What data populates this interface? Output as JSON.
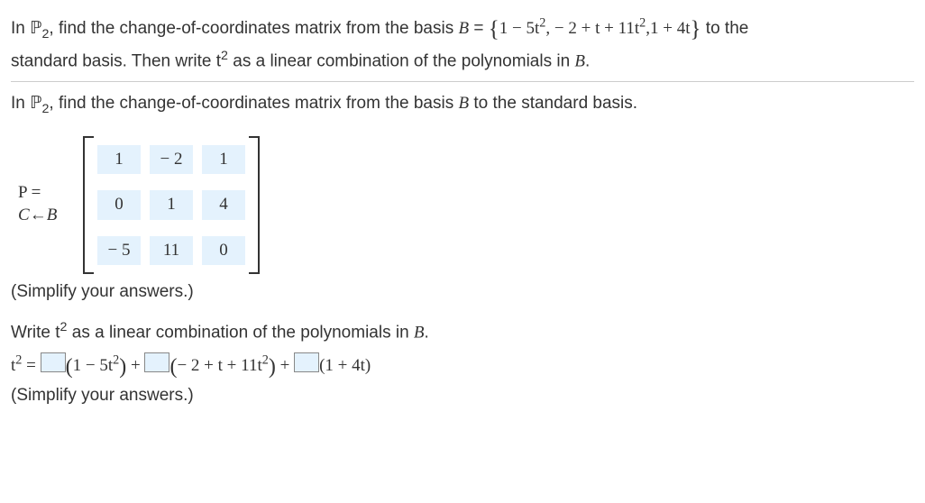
{
  "problem": {
    "space_symbol": "ℙ",
    "space_sub": "2",
    "intro1_a": "In ",
    "intro1_b": ", find the change-of-coordinates matrix from the basis ",
    "basis_label": "B",
    "equals": " = ",
    "basis_set_open": "{",
    "basis_poly1_a": "1 − 5t",
    "basis_poly1_sup": "2",
    "basis_sep1": ", − 2 + t + 11t",
    "basis_poly2_sup": "2",
    "basis_sep2": ",1 + 4t",
    "basis_set_close": "}",
    "intro1_c": " to the",
    "intro2_a": "standard basis. Then write t",
    "intro2_sup": "2",
    "intro2_b": " as a linear combination of the polynomials in ",
    "intro2_c": "."
  },
  "question": {
    "line_a": "In ",
    "line_b": ", find the change-of-coordinates matrix from the basis ",
    "line_c": " to the standard basis."
  },
  "matrix": {
    "label_top": "P   =",
    "label_bot_left": "C",
    "label_bot_arrow": "←",
    "label_bot_right": "B",
    "cells": [
      [
        "1",
        "− 2",
        "1"
      ],
      [
        "0",
        "1",
        "4"
      ],
      [
        "− 5",
        "11",
        "0"
      ]
    ],
    "cell_bg": "#e4f2fd"
  },
  "simplify_text": "(Simplify your answers.)",
  "part2": {
    "prompt_a": "Write t",
    "prompt_sup": "2",
    "prompt_b": " as a linear combination of the polynomials in ",
    "prompt_c": "."
  },
  "combo": {
    "lhs_a": "t",
    "lhs_sup": "2",
    "eq": " = ",
    "term1_a": "1 − 5t",
    "term1_sup": "2",
    "plus1": " + ",
    "term2_a": "− 2 + t + 11t",
    "term2_sup": "2",
    "plus2": " + ",
    "term3": "(1 + 4t)"
  }
}
